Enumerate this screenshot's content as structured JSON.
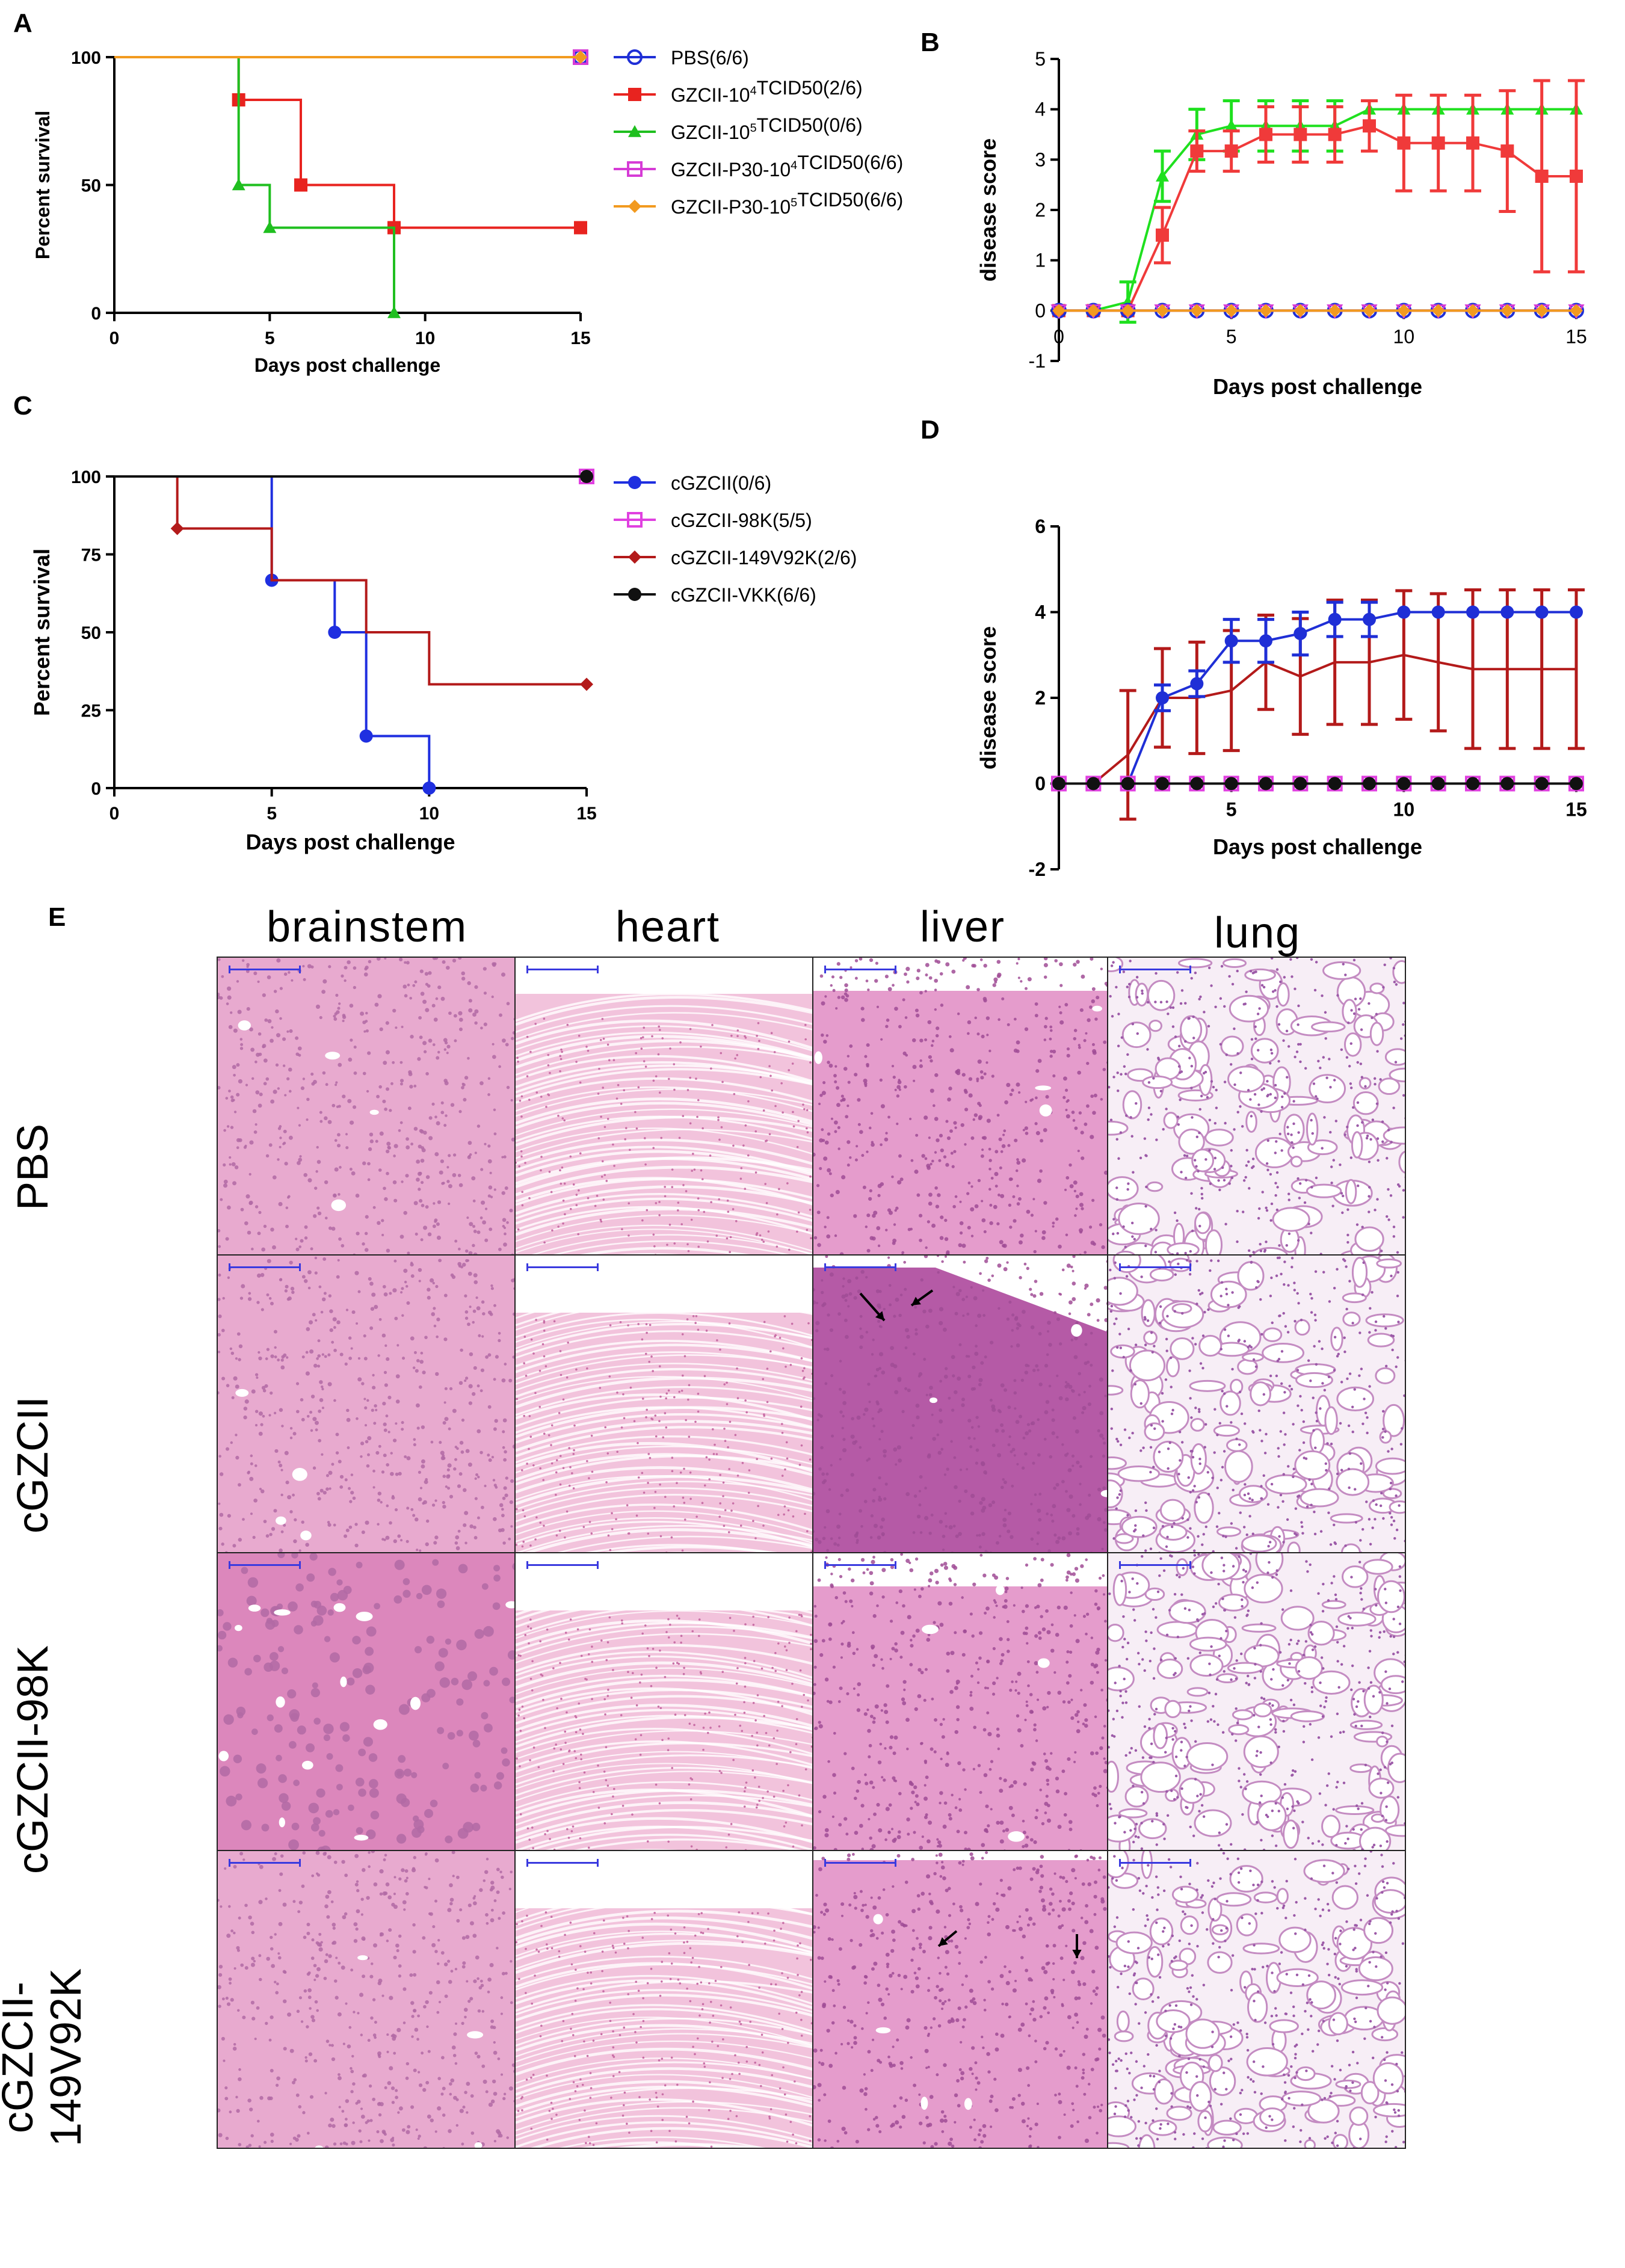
{
  "chart_data": [
    {
      "panel": "A",
      "type": "line",
      "step": true,
      "xlabel": "Days post challenge",
      "ylabel": "Percent survival",
      "xlim": [
        0,
        15
      ],
      "ylim": [
        0,
        100
      ],
      "xticks": [
        0,
        5,
        10,
        15
      ],
      "yticks": [
        0,
        50,
        100
      ],
      "series": [
        {
          "name": "PBS(6/6)",
          "color": "#1f2fd6",
          "marker": "circle-open",
          "points": [
            [
              0,
              100
            ],
            [
              15,
              100
            ]
          ],
          "markers": [
            [
              15,
              100
            ]
          ]
        },
        {
          "name": "GZCII-10⁴TCID50(2/6)",
          "color": "#e8231f",
          "marker": "square",
          "points": [
            [
              0,
              100
            ],
            [
              4,
              100
            ],
            [
              4,
              83.3
            ],
            [
              6,
              83.3
            ],
            [
              6,
              50
            ],
            [
              9,
              50
            ],
            [
              9,
              33.3
            ],
            [
              15,
              33.3
            ]
          ],
          "markers": [
            [
              4,
              83.3
            ],
            [
              6,
              50
            ],
            [
              9,
              33.3
            ],
            [
              15,
              33.3
            ]
          ]
        },
        {
          "name": "GZCII-10⁵TCID50(0/6)",
          "color": "#1fbf1f",
          "marker": "triangle",
          "points": [
            [
              0,
              100
            ],
            [
              4,
              100
            ],
            [
              4,
              50
            ],
            [
              5,
              50
            ],
            [
              5,
              33.3
            ],
            [
              9,
              33.3
            ],
            [
              9,
              0
            ]
          ],
          "markers": [
            [
              4,
              50
            ],
            [
              5,
              33.3
            ],
            [
              9,
              0
            ]
          ]
        },
        {
          "name": "GZCII-P30-10⁴TCID50(6/6)",
          "color": "#d63bd6",
          "marker": "square-open",
          "points": [
            [
              0,
              100
            ],
            [
              15,
              100
            ]
          ],
          "markers": [
            [
              15,
              100
            ]
          ]
        },
        {
          "name": "GZCII-P30-10⁵TCID50(6/6)",
          "color": "#f29a1f",
          "marker": "diamond",
          "points": [
            [
              0,
              100
            ],
            [
              15,
              100
            ]
          ],
          "markers": [
            [
              15,
              100
            ]
          ]
        }
      ]
    },
    {
      "panel": "B",
      "type": "line",
      "xlabel": "Days post challenge",
      "ylabel": "disease score",
      "xlim": [
        0,
        15
      ],
      "ylim": [
        -1,
        5
      ],
      "xticks": [
        0,
        5,
        10,
        15
      ],
      "yticks": [
        -1,
        0,
        1,
        2,
        3,
        4,
        5
      ],
      "series": [
        {
          "name": "GZCII-10⁵TCID50",
          "color": "#1fe01f",
          "marker": "triangle",
          "x": [
            0,
            1,
            2,
            3,
            4,
            5,
            6,
            7,
            8,
            9
          ],
          "y": [
            0,
            0,
            0.17,
            2.67,
            3.5,
            3.67,
            3.67,
            3.67,
            3.67,
            4
          ],
          "err": [
            0,
            0,
            0.4,
            0.5,
            0.5,
            0.5,
            0.5,
            0.5,
            0.5,
            0
          ],
          "tail_x": [
            9,
            10,
            11,
            12,
            13,
            14,
            15
          ],
          "tail_y": [
            4,
            4,
            4,
            4,
            4,
            4,
            4
          ]
        },
        {
          "name": "GZCII-10⁴TCID50",
          "color": "#f03a3a",
          "marker": "square",
          "x": [
            0,
            1,
            2,
            3,
            4,
            5,
            6,
            7,
            8,
            9,
            10,
            11,
            12,
            13,
            14,
            15
          ],
          "y": [
            0,
            0,
            0,
            1.5,
            3.17,
            3.17,
            3.5,
            3.5,
            3.5,
            3.67,
            3.33,
            3.33,
            3.33,
            3.17,
            2.67,
            2.67
          ],
          "err": [
            0,
            0,
            0,
            0.55,
            0.4,
            0.4,
            0.55,
            0.55,
            0.55,
            0.5,
            0.95,
            0.95,
            0.95,
            1.2,
            1.9,
            1.9
          ]
        },
        {
          "name": "PBS",
          "color": "#1f2fd6",
          "marker": "circle-open",
          "x": [
            0,
            1,
            2,
            3,
            4,
            5,
            6,
            7,
            8,
            9,
            10,
            11,
            12,
            13,
            14,
            15
          ],
          "y": [
            0,
            0,
            0,
            0,
            0,
            0,
            0,
            0,
            0,
            0,
            0,
            0,
            0,
            0,
            0,
            0
          ]
        },
        {
          "name": "GZCII-P30-10⁴TCID50",
          "color": "#d63bd6",
          "marker": "triangle-down-open",
          "x": [
            0,
            1,
            2,
            3,
            4,
            5,
            6,
            7,
            8,
            9,
            10,
            11,
            12,
            13,
            14,
            15
          ],
          "y": [
            0,
            0,
            0,
            0,
            0,
            0,
            0,
            0,
            0,
            0,
            0,
            0,
            0,
            0,
            0,
            0
          ]
        },
        {
          "name": "GZCII-P30-10⁵TCID50",
          "color": "#f29a1f",
          "marker": "diamond",
          "x": [
            0,
            1,
            2,
            3,
            4,
            5,
            6,
            7,
            8,
            9,
            10,
            11,
            12,
            13,
            14,
            15
          ],
          "y": [
            0,
            0,
            0,
            0,
            0,
            0,
            0,
            0,
            0,
            0,
            0,
            0,
            0,
            0,
            0,
            0
          ]
        }
      ]
    },
    {
      "panel": "C",
      "type": "line",
      "step": true,
      "xlabel": "Days post challenge",
      "ylabel": "Percent survival",
      "xlim": [
        0,
        15
      ],
      "ylim": [
        0,
        100
      ],
      "xticks": [
        0,
        5,
        10,
        15
      ],
      "yticks": [
        0,
        25,
        50,
        75,
        100
      ],
      "series": [
        {
          "name": "cGZCII(0/6)",
          "color": "#1f2fe0",
          "marker": "circle",
          "points": [
            [
              0,
              100
            ],
            [
              5,
              100
            ],
            [
              5,
              66.7
            ],
            [
              7,
              66.7
            ],
            [
              7,
              50
            ],
            [
              8,
              50
            ],
            [
              8,
              16.7
            ],
            [
              10,
              16.7
            ],
            [
              10,
              0
            ]
          ],
          "markers": [
            [
              5,
              66.7
            ],
            [
              7,
              50
            ],
            [
              8,
              16.7
            ],
            [
              10,
              0
            ]
          ]
        },
        {
          "name": "cGZCII-98K(5/5)",
          "color": "#e040e0",
          "marker": "square-open",
          "points": [
            [
              0,
              100
            ],
            [
              15,
              100
            ]
          ],
          "markers": [
            [
              15,
              100
            ]
          ]
        },
        {
          "name": "cGZCII-149V92K(2/6)",
          "color": "#b31a1a",
          "marker": "diamond",
          "points": [
            [
              0,
              100
            ],
            [
              2,
              100
            ],
            [
              2,
              83.3
            ],
            [
              5,
              83.3
            ],
            [
              5,
              66.7
            ],
            [
              8,
              66.7
            ],
            [
              8,
              50
            ],
            [
              10,
              50
            ],
            [
              10,
              33.3
            ],
            [
              15,
              33.3
            ]
          ],
          "markers": [
            [
              2,
              83.3
            ],
            [
              15,
              33.3
            ]
          ]
        },
        {
          "name": "cGZCII-VKK(6/6)",
          "color": "#111111",
          "marker": "circle",
          "points": [
            [
              0,
              100
            ],
            [
              15,
              100
            ]
          ],
          "markers": [
            [
              15,
              100
            ]
          ]
        }
      ]
    },
    {
      "panel": "D",
      "type": "line",
      "xlabel": "Days post challenge",
      "ylabel": "disease score",
      "xlim": [
        0,
        15
      ],
      "ylim": [
        -2,
        6
      ],
      "xticks": [
        5,
        10,
        15
      ],
      "yticks": [
        -2,
        0,
        2,
        4,
        6
      ],
      "series": [
        {
          "name": "cGZCII-149V92K",
          "color": "#b31a1a",
          "marker": "none",
          "x": [
            0,
            1,
            2,
            3,
            4,
            5,
            6,
            7,
            8,
            9,
            10,
            11,
            12,
            13,
            14,
            15
          ],
          "y": [
            0,
            0,
            0.67,
            2,
            2,
            2.17,
            2.83,
            2.5,
            2.83,
            2.83,
            3,
            2.83,
            2.67,
            2.67,
            2.67,
            2.67
          ],
          "err": [
            0,
            0,
            1.5,
            1.15,
            1.3,
            1.4,
            1.1,
            1.35,
            1.45,
            1.45,
            1.5,
            1.6,
            1.85,
            1.85,
            1.85,
            1.85
          ]
        },
        {
          "name": "cGZCII",
          "color": "#1f2fd6",
          "marker": "circle",
          "x": [
            0,
            1,
            2,
            3,
            4,
            5,
            6,
            7,
            8,
            9,
            10,
            11,
            12,
            13,
            14,
            15
          ],
          "y": [
            0,
            0,
            0,
            2,
            2.33,
            3.33,
            3.33,
            3.5,
            3.83,
            3.83,
            4,
            4,
            4,
            4,
            4,
            4
          ],
          "err": [
            0,
            0,
            0,
            0.3,
            0.3,
            0.5,
            0.5,
            0.5,
            0.4,
            0.4,
            0,
            0,
            0,
            0,
            0,
            0
          ]
        },
        {
          "name": "cGZCII-98K",
          "color": "#e040e0",
          "marker": "square-open",
          "x": [
            0,
            1,
            2,
            3,
            4,
            5,
            6,
            7,
            8,
            9,
            10,
            11,
            12,
            13,
            14,
            15
          ],
          "y": [
            0,
            0,
            0,
            0,
            0,
            0,
            0,
            0,
            0,
            0,
            0,
            0,
            0,
            0,
            0,
            0
          ]
        },
        {
          "name": "cGZCII-VKK",
          "color": "#111111",
          "marker": "circle",
          "x": [
            0,
            1,
            2,
            3,
            4,
            5,
            6,
            7,
            8,
            9,
            10,
            11,
            12,
            13,
            14,
            15
          ],
          "y": [
            0,
            0,
            0,
            0,
            0,
            0,
            0,
            0,
            0,
            0,
            0,
            0,
            0,
            0,
            0,
            0
          ]
        }
      ]
    }
  ],
  "panel_labels": {
    "A": "A",
    "B": "B",
    "C": "C",
    "D": "D",
    "E": "E"
  },
  "histology": {
    "columns": [
      "brainstem",
      "heart",
      "liver",
      "lung"
    ],
    "rows": [
      "PBS",
      "cGZCII",
      "cGZCII-98K",
      "cGZCII-\n149V92K"
    ]
  },
  "colors": {
    "he_pink": "#e8a6c8",
    "he_purple": "#a0488e",
    "scale_bar": "#3a3adf"
  }
}
